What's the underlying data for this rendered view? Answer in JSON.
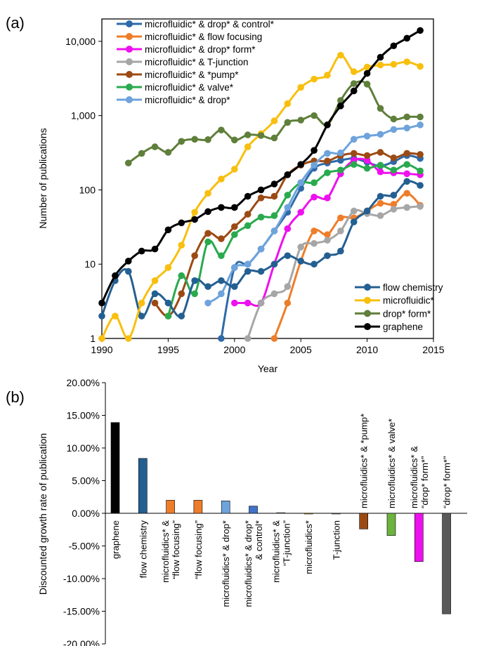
{
  "chart_data": [
    {
      "type": "line",
      "panel_label": "(a)",
      "xlabel": "Year",
      "ylabel": "Number of publications",
      "yscale": "log",
      "xlim": [
        1990,
        2015
      ],
      "ylim": [
        1,
        20000
      ],
      "xticks": [
        "1990",
        "1995",
        "2000",
        "2005",
        "2010",
        "2015"
      ],
      "yticks": [
        "1",
        "10",
        "100",
        "1,000",
        "10,000"
      ],
      "grid": false,
      "legend_placement": [
        "top-left",
        "bottom-right"
      ],
      "series": [
        {
          "name": "microfluidic* & drop* & control*",
          "color": "#2e6aa8",
          "legend": 0,
          "x": [
            1999,
            2000,
            2001,
            2002,
            2003,
            2004,
            2005,
            2006,
            2007,
            2008,
            2009,
            2010,
            2011,
            2012,
            2013,
            2014
          ],
          "y": [
            1,
            9,
            10,
            16,
            28,
            50,
            105,
            195,
            230,
            250,
            265,
            235,
            210,
            240,
            290,
            265
          ]
        },
        {
          "name": "microfluidic* & flow focusing",
          "color": "#ee7d2a",
          "legend": 0,
          "x": [
            2003,
            2004,
            2005,
            2006,
            2007,
            2008,
            2009,
            2010,
            2011,
            2012,
            2013,
            2014
          ],
          "y": [
            1,
            3,
            11,
            28,
            25,
            42,
            42,
            52,
            66,
            64,
            90,
            62
          ]
        },
        {
          "name": "microfluidic* & drop* form*",
          "color": "#ee10ee",
          "legend": 0,
          "x": [
            2000,
            2001,
            2002,
            2003,
            2004,
            2005,
            2006,
            2007,
            2008,
            2009,
            2010,
            2011,
            2012,
            2013,
            2014
          ],
          "y": [
            3,
            3,
            3,
            10,
            30,
            50,
            80,
            78,
            165,
            250,
            250,
            175,
            170,
            165,
            160
          ]
        },
        {
          "name": "microfluidic* & T-junction",
          "color": "#a6a6a6",
          "legend": 0,
          "x": [
            2001,
            2002,
            2003,
            2004,
            2005,
            2006,
            2007,
            2008,
            2009,
            2010,
            2011,
            2012,
            2013,
            2014
          ],
          "y": [
            1,
            3,
            4,
            5,
            17,
            19,
            21,
            28,
            52,
            48,
            45,
            55,
            58,
            60
          ]
        },
        {
          "name": "microfluidic* & *pump*",
          "color": "#9c4a14",
          "legend": 0,
          "x": [
            1994,
            1995,
            1996,
            1997,
            1998,
            1999,
            2000,
            2001,
            2002,
            2003,
            2004,
            2005,
            2006,
            2007,
            2008,
            2009,
            2010,
            2011,
            2012,
            2013,
            2014
          ],
          "y": [
            3,
            2,
            4,
            13,
            26,
            22,
            32,
            47,
            78,
            82,
            160,
            215,
            245,
            245,
            290,
            310,
            290,
            320,
            270,
            310,
            300
          ]
        },
        {
          "name": "microfluidic* & valve*",
          "color": "#2aaa4e",
          "legend": 0,
          "x": [
            1995,
            1996,
            1997,
            1998,
            1999,
            2000,
            2001,
            2002,
            2003,
            2004,
            2005,
            2006,
            2007,
            2008,
            2009,
            2010,
            2011,
            2012,
            2013,
            2014
          ],
          "y": [
            2,
            7,
            4,
            20,
            13,
            25,
            33,
            43,
            45,
            85,
            125,
            125,
            170,
            185,
            220,
            195,
            215,
            185,
            220,
            180
          ]
        },
        {
          "name": "microfluidic* & drop*",
          "color": "#6ea3dc",
          "legend": 0,
          "x": [
            1998,
            1999,
            2000,
            2001,
            2002,
            2003,
            2004,
            2005,
            2006,
            2007,
            2008,
            2009,
            2010,
            2011,
            2012,
            2013,
            2014
          ],
          "y": [
            3,
            4,
            9,
            10,
            16,
            28,
            58,
            125,
            215,
            310,
            315,
            480,
            530,
            560,
            650,
            680,
            750
          ]
        },
        {
          "name": "flow chemistry",
          "color": "#245f91",
          "legend": 1,
          "x": [
            1990,
            1991,
            1992,
            1993,
            1994,
            1995,
            1996,
            1997,
            1998,
            1999,
            2000,
            2001,
            2002,
            2003,
            2004,
            2005,
            2006,
            2007,
            2008,
            2009,
            2010,
            2011,
            2012,
            2013,
            2014
          ],
          "y": [
            2,
            6,
            8,
            2,
            4,
            3,
            2,
            6,
            5,
            6,
            5,
            8,
            8,
            10,
            13,
            11,
            10,
            13,
            15,
            37,
            52,
            82,
            85,
            130,
            115
          ]
        },
        {
          "name": "microfluidic*",
          "color": "#f8bf0e",
          "legend": 1,
          "x": [
            1990,
            1991,
            1992,
            1993,
            1994,
            1995,
            1996,
            1997,
            1998,
            1999,
            2000,
            2001,
            2002,
            2003,
            2004,
            2005,
            2006,
            2007,
            2008,
            2009,
            2010,
            2011,
            2012,
            2013,
            2014
          ],
          "y": [
            1,
            2,
            1,
            3,
            6,
            9,
            18,
            50,
            90,
            140,
            190,
            380,
            570,
            850,
            1450,
            2400,
            3100,
            3500,
            6500,
            3900,
            4500,
            4800,
            4900,
            5300,
            4600
          ]
        },
        {
          "name": "drop* form*",
          "color": "#5f7f3b",
          "legend": 1,
          "x": [
            1992,
            1993,
            1994,
            1995,
            1996,
            1997,
            1998,
            1999,
            2000,
            2001,
            2002,
            2003,
            2004,
            2005,
            2006,
            2007,
            2008,
            2009,
            2010,
            2011,
            2012,
            2013,
            2014
          ],
          "y": [
            230,
            310,
            380,
            320,
            450,
            480,
            475,
            640,
            470,
            550,
            540,
            500,
            810,
            870,
            1000,
            750,
            1600,
            2700,
            2650,
            1250,
            900,
            960,
            960
          ]
        },
        {
          "name": "graphene",
          "color": "#000000",
          "legend": 1,
          "x": [
            1990,
            1991,
            1992,
            1993,
            1994,
            1995,
            1996,
            1997,
            1998,
            1999,
            2000,
            2001,
            2002,
            2003,
            2004,
            2005,
            2006,
            2007,
            2008,
            2009,
            2010,
            2011,
            2012,
            2013,
            2014
          ],
          "y": [
            3,
            7,
            11,
            15,
            16,
            29,
            36,
            40,
            51,
            58,
            58,
            82,
            100,
            120,
            160,
            220,
            340,
            750,
            1350,
            2150,
            3700,
            6100,
            8700,
            11000,
            14000
          ]
        }
      ]
    },
    {
      "type": "bar",
      "panel_label": "(b)",
      "xlabel": "",
      "ylabel": "Discounted growth rate of publication",
      "ylim": [
        -0.2,
        0.2
      ],
      "yticks": [
        "20.00%",
        "15.00%",
        "10.00%",
        "5.00%",
        "0.00%",
        "-5.00%",
        "-10.00%",
        "-15.00%",
        "-20.00%"
      ],
      "grid": false,
      "categories": [
        [
          "graphene"
        ],
        [
          "flow chemistry"
        ],
        [
          "microfluidics* &",
          "“flow focusing”"
        ],
        [
          "“flow focusing”"
        ],
        [
          "microfluidics* & drop*"
        ],
        [
          "microfluidics* & drop*",
          "& control*"
        ],
        [
          "microfluidics* &",
          "“T-junction”"
        ],
        [
          "microfluidics*"
        ],
        [
          "T-junction"
        ],
        [
          "microfluidics* & *pump*"
        ],
        [
          "microfluidics* & valve*"
        ],
        [
          "microfluidics* &",
          "“drop* form*”"
        ],
        [
          "“drop* form*”"
        ]
      ],
      "values": [
        0.139,
        0.084,
        0.02,
        0.02,
        0.019,
        0.011,
        0.001,
        0.0,
        0.0,
        -0.024,
        -0.034,
        -0.074,
        -0.154
      ],
      "colors": [
        "#000000",
        "#245f91",
        "#ee7d2a",
        "#ee7d2a",
        "#6ea3dc",
        "#3f72c8",
        "#a6a6a6",
        "#f8bf0e",
        "#a6a6a6",
        "#9c4a14",
        "#6db33f",
        "#ee10ee",
        "#595959"
      ]
    }
  ]
}
